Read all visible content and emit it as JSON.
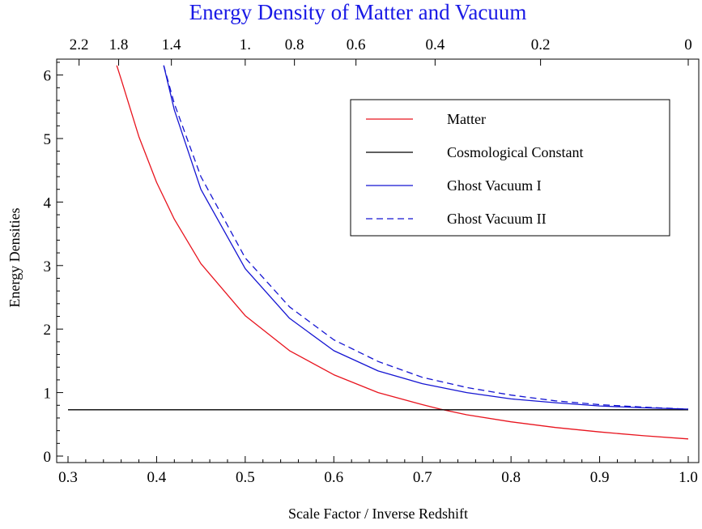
{
  "chart_data": {
    "type": "line",
    "title": "Energy Density of Matter and Vacuum",
    "xlabel": "Scale Factor / Inverse Redshift",
    "ylabel": "Energy Densities",
    "xlim": [
      0.3,
      1.0
    ],
    "ylim": [
      0,
      6.15
    ],
    "x_ticks": [
      "0.3",
      "0.4",
      "0.5",
      "0.6",
      "0.7",
      "0.8",
      "0.9",
      "1.0"
    ],
    "x_tick_values": [
      0.3,
      0.4,
      0.5,
      0.6,
      0.7,
      0.8,
      0.9,
      1.0
    ],
    "y_ticks": [
      "0",
      "1",
      "2",
      "3",
      "4",
      "5",
      "6"
    ],
    "y_tick_values": [
      0,
      1,
      2,
      3,
      4,
      5,
      6
    ],
    "top_axis_ticks": [
      "2.2",
      "1.8",
      "1.4",
      "1.",
      "0.8",
      "0.6",
      "0.4",
      "0.2",
      "0"
    ],
    "top_axis_values": [
      2.2,
      1.8,
      1.4,
      1.0,
      0.8,
      0.6,
      0.4,
      0.2,
      0
    ],
    "grid": false,
    "legend_position": "top-right",
    "series": [
      {
        "name": "Matter",
        "color": "#e8141e",
        "style": "solid",
        "x": [
          0.355,
          0.36,
          0.38,
          0.4,
          0.42,
          0.45,
          0.5,
          0.55,
          0.6,
          0.65,
          0.7,
          0.72,
          0.75,
          0.8,
          0.85,
          0.9,
          0.95,
          1.0
        ],
        "y": [
          6.15,
          5.93,
          5.03,
          4.31,
          3.73,
          3.03,
          2.21,
          1.66,
          1.28,
          1.0,
          0.81,
          0.74,
          0.65,
          0.54,
          0.45,
          0.38,
          0.32,
          0.27
        ]
      },
      {
        "name": "Cosmological Constant",
        "color": "#000000",
        "style": "solid",
        "x": [
          0.3,
          1.0
        ],
        "y": [
          0.73,
          0.73
        ]
      },
      {
        "name": "Ghost Vacuum I",
        "color": "#1414d2",
        "style": "solid",
        "x": [
          0.408,
          0.42,
          0.45,
          0.5,
          0.55,
          0.6,
          0.65,
          0.7,
          0.75,
          0.8,
          0.85,
          0.9,
          0.95,
          1.0
        ],
        "y": [
          6.15,
          5.45,
          4.2,
          2.95,
          2.17,
          1.66,
          1.34,
          1.14,
          1.0,
          0.9,
          0.84,
          0.79,
          0.76,
          0.74
        ]
      },
      {
        "name": "Ghost Vacuum II",
        "color": "#1414d2",
        "style": "dashed",
        "x": [
          0.408,
          0.42,
          0.45,
          0.5,
          0.55,
          0.6,
          0.65,
          0.7,
          0.75,
          0.8,
          0.85,
          0.9,
          0.95,
          1.0
        ],
        "y": [
          6.15,
          5.55,
          4.4,
          3.12,
          2.35,
          1.83,
          1.49,
          1.24,
          1.08,
          0.96,
          0.87,
          0.81,
          0.77,
          0.74
        ]
      }
    ]
  }
}
